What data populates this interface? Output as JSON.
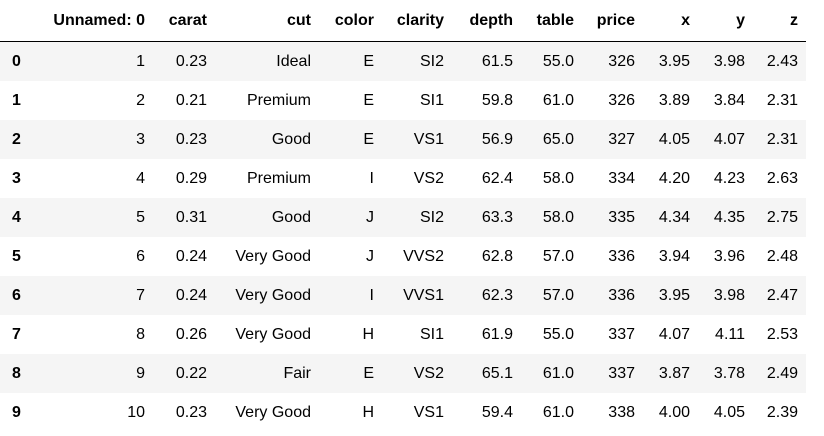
{
  "table": {
    "columns": [
      "Unnamed: 0",
      "carat",
      "cut",
      "color",
      "clarity",
      "depth",
      "table",
      "price",
      "x",
      "y",
      "z"
    ],
    "index": [
      "0",
      "1",
      "2",
      "3",
      "4",
      "5",
      "6",
      "7",
      "8",
      "9"
    ],
    "rows": [
      [
        "1",
        "0.23",
        "Ideal",
        "E",
        "SI2",
        "61.5",
        "55.0",
        "326",
        "3.95",
        "3.98",
        "2.43"
      ],
      [
        "2",
        "0.21",
        "Premium",
        "E",
        "SI1",
        "59.8",
        "61.0",
        "326",
        "3.89",
        "3.84",
        "2.31"
      ],
      [
        "3",
        "0.23",
        "Good",
        "E",
        "VS1",
        "56.9",
        "65.0",
        "327",
        "4.05",
        "4.07",
        "2.31"
      ],
      [
        "4",
        "0.29",
        "Premium",
        "I",
        "VS2",
        "62.4",
        "58.0",
        "334",
        "4.20",
        "4.23",
        "2.63"
      ],
      [
        "5",
        "0.31",
        "Good",
        "J",
        "SI2",
        "63.3",
        "58.0",
        "335",
        "4.34",
        "4.35",
        "2.75"
      ],
      [
        "6",
        "0.24",
        "Very Good",
        "J",
        "VVS2",
        "62.8",
        "57.0",
        "336",
        "3.94",
        "3.96",
        "2.48"
      ],
      [
        "7",
        "0.24",
        "Very Good",
        "I",
        "VVS1",
        "62.3",
        "57.0",
        "336",
        "3.95",
        "3.98",
        "2.47"
      ],
      [
        "8",
        "0.26",
        "Very Good",
        "H",
        "SI1",
        "61.9",
        "55.0",
        "337",
        "4.07",
        "4.11",
        "2.53"
      ],
      [
        "9",
        "0.22",
        "Fair",
        "E",
        "VS2",
        "65.1",
        "61.0",
        "337",
        "3.87",
        "3.78",
        "2.49"
      ],
      [
        "10",
        "0.23",
        "Very Good",
        "H",
        "VS1",
        "59.4",
        "61.0",
        "338",
        "4.00",
        "4.05",
        "2.39"
      ]
    ]
  }
}
